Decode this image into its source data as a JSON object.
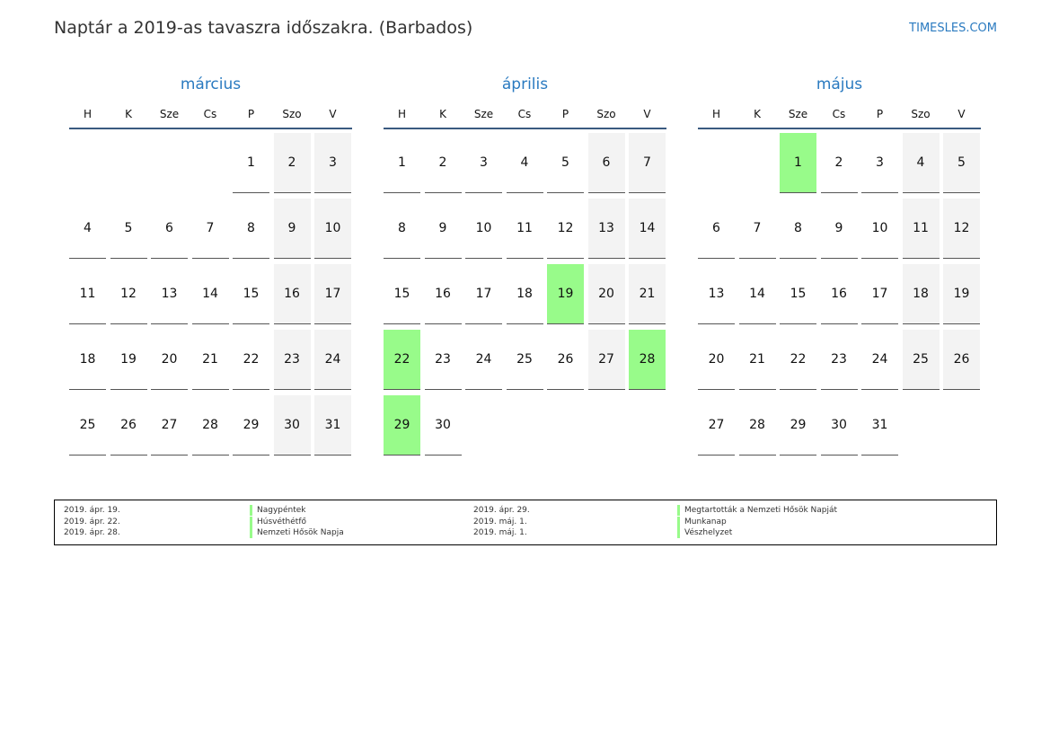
{
  "title": "Naptár a 2019-as tavaszra időszakra. (Barbados)",
  "brand": "TIMESLES.COM",
  "weekdays": [
    "H",
    "K",
    "Sze",
    "Cs",
    "P",
    "Szo",
    "V"
  ],
  "months": [
    {
      "name": "március",
      "weeks": [
        [
          null,
          null,
          null,
          null,
          1,
          2,
          3
        ],
        [
          4,
          5,
          6,
          7,
          8,
          9,
          10
        ],
        [
          11,
          12,
          13,
          14,
          15,
          16,
          17
        ],
        [
          18,
          19,
          20,
          21,
          22,
          23,
          24
        ],
        [
          25,
          26,
          27,
          28,
          29,
          30,
          31
        ]
      ],
      "holidays": []
    },
    {
      "name": "április",
      "weeks": [
        [
          1,
          2,
          3,
          4,
          5,
          6,
          7
        ],
        [
          8,
          9,
          10,
          11,
          12,
          13,
          14
        ],
        [
          15,
          16,
          17,
          18,
          19,
          20,
          21
        ],
        [
          22,
          23,
          24,
          25,
          26,
          27,
          28
        ],
        [
          29,
          30,
          null,
          null,
          null,
          null,
          null
        ]
      ],
      "holidays": [
        19,
        22,
        28,
        29
      ]
    },
    {
      "name": "május",
      "weeks": [
        [
          null,
          null,
          1,
          2,
          3,
          4,
          5
        ],
        [
          6,
          7,
          8,
          9,
          10,
          11,
          12
        ],
        [
          13,
          14,
          15,
          16,
          17,
          18,
          19
        ],
        [
          20,
          21,
          22,
          23,
          24,
          25,
          26
        ],
        [
          27,
          28,
          29,
          30,
          31,
          null,
          null
        ]
      ],
      "holidays": [
        1
      ]
    }
  ],
  "legend": [
    {
      "date": "2019. ápr. 19.",
      "name": "Nagypéntek"
    },
    {
      "date": "2019. ápr. 22.",
      "name": "Húsvéthétfő"
    },
    {
      "date": "2019. ápr. 28.",
      "name": "Nemzeti Hősök Napja"
    },
    {
      "date": "2019. ápr. 29.",
      "name": "Megtartották a Nemzeti Hősök Napját"
    },
    {
      "date": "2019. máj. 1.",
      "name": "Munkanap"
    },
    {
      "date": "2019. máj. 1.",
      "name": "Vészhelyzet"
    }
  ],
  "colors": {
    "holiday": "#98fb8a",
    "weekend": "#f3f3f3",
    "accent": "#2a7ac0"
  }
}
